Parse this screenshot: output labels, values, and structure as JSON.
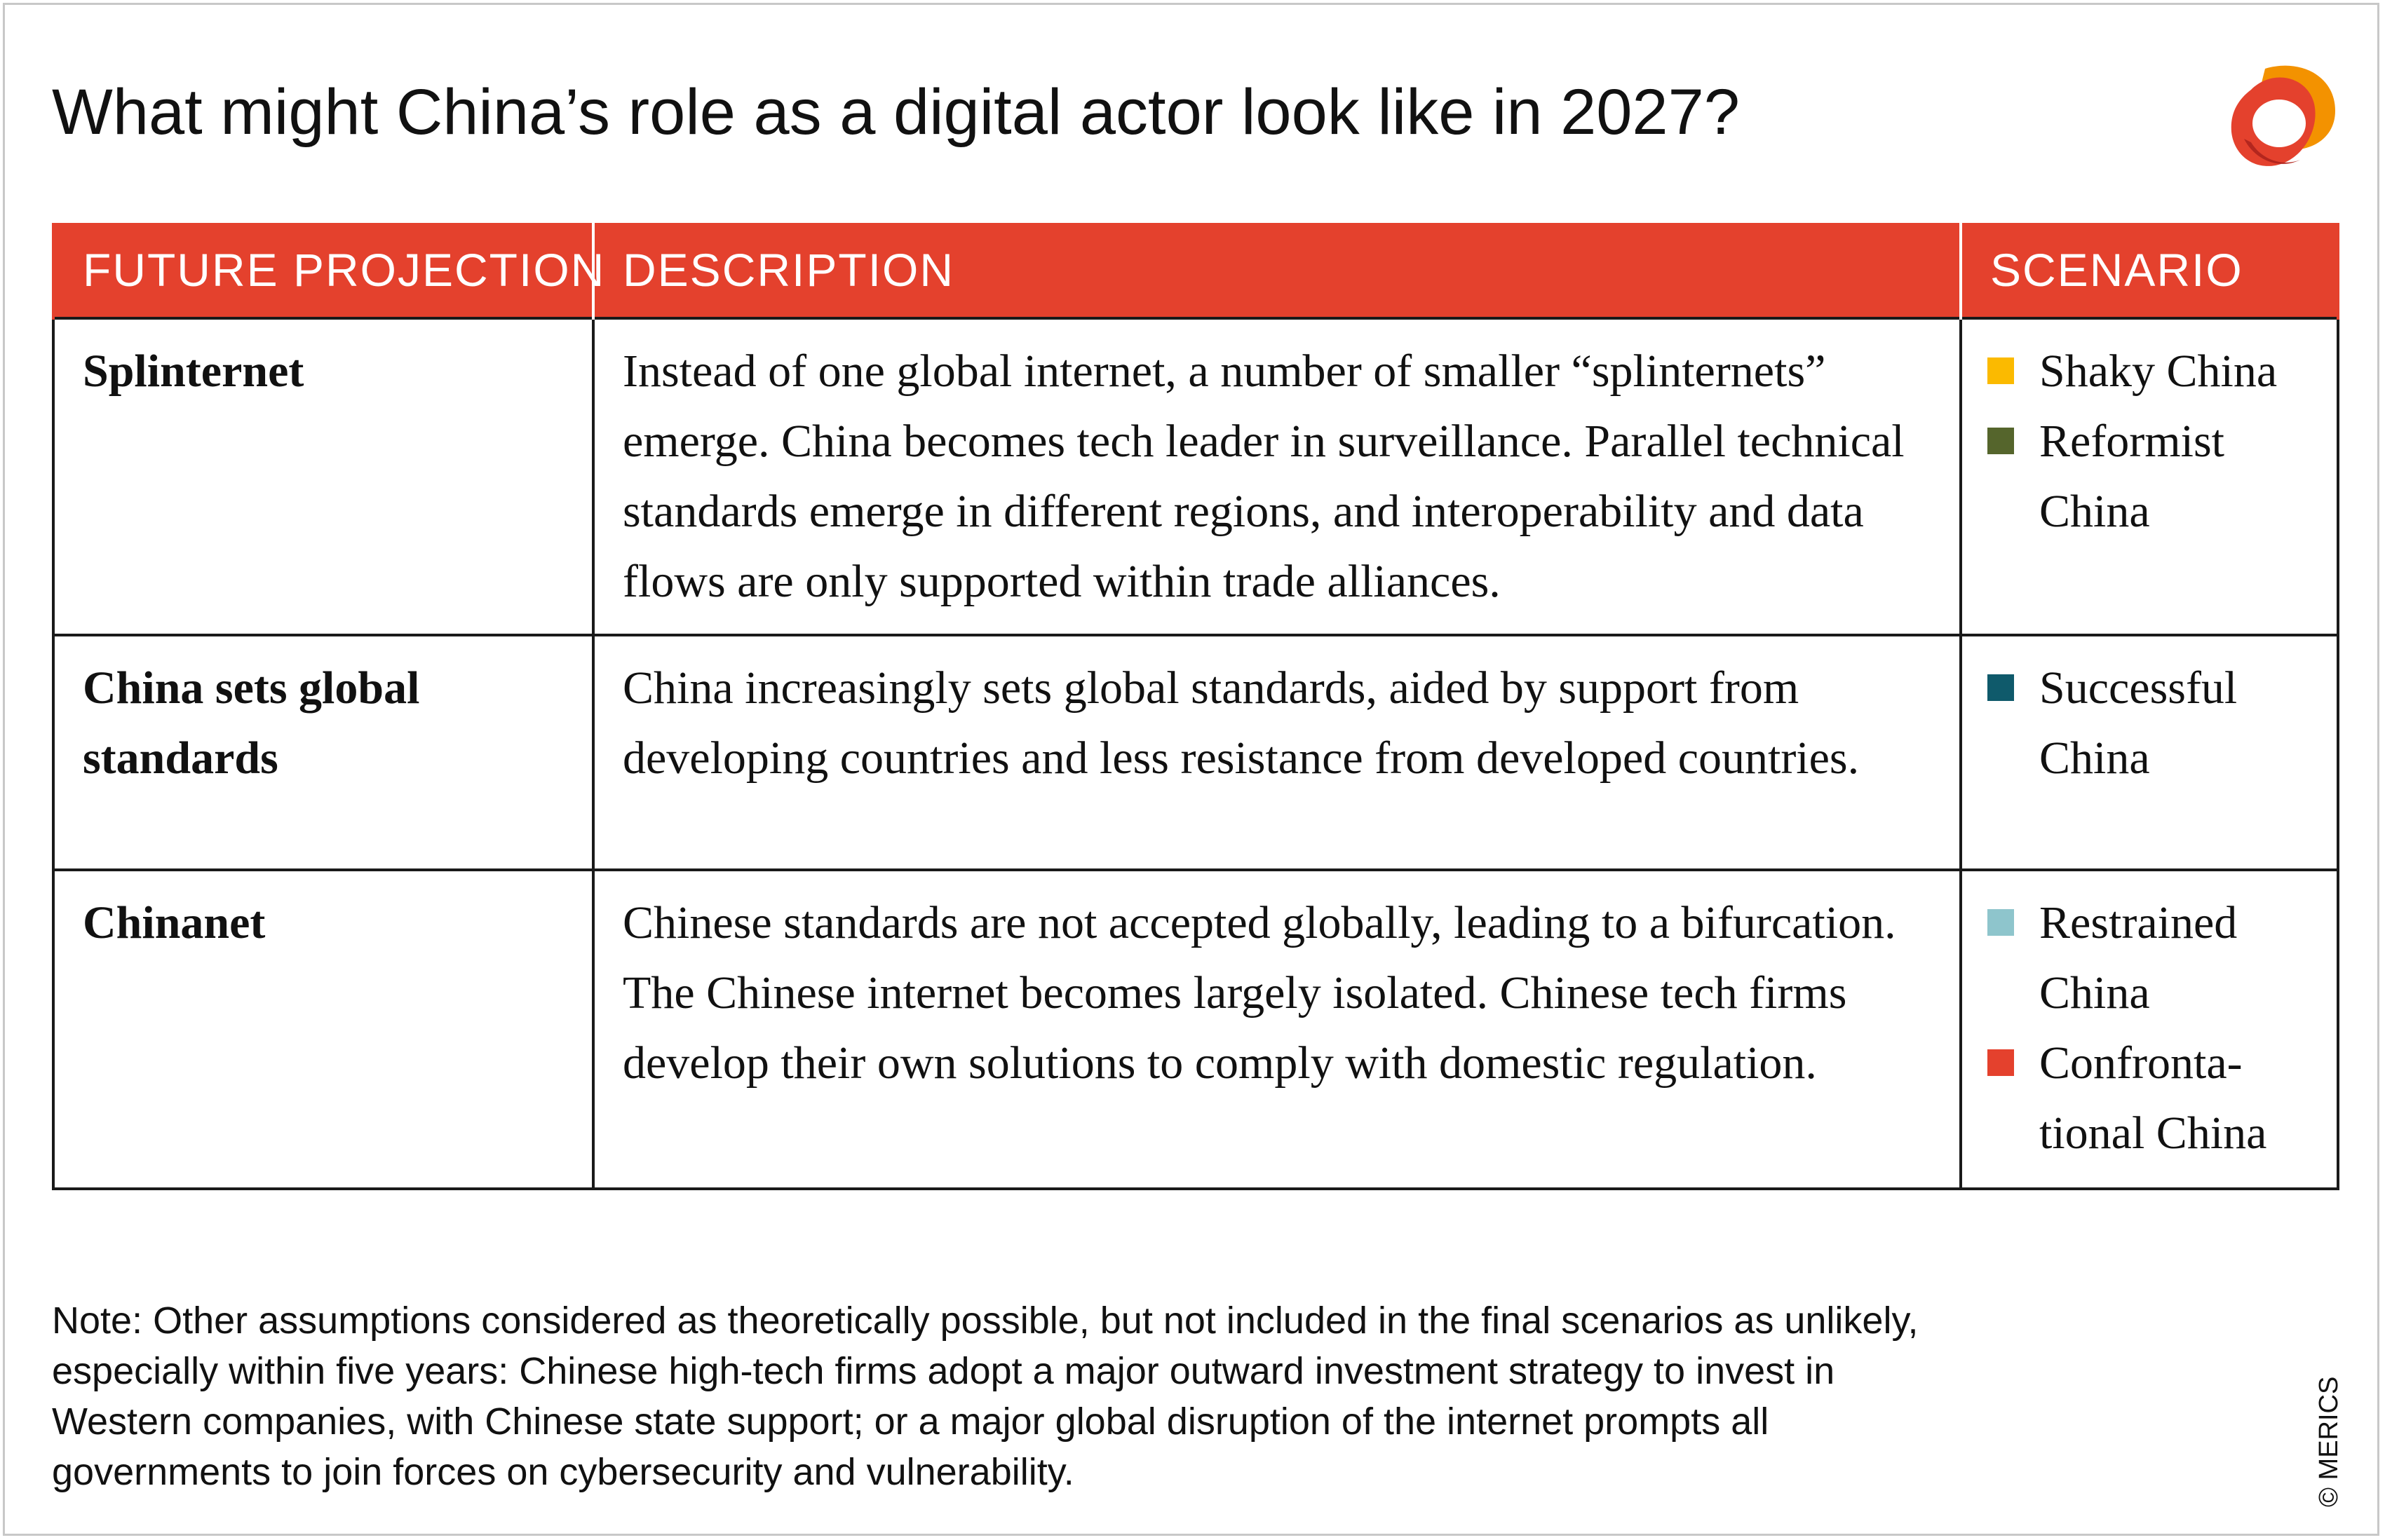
{
  "title": "What might China’s role as a digital actor look like in 2027?",
  "colors": {
    "header_bg": "#e4412d",
    "header_text": "#ffffff",
    "logo_red": "#e4412d",
    "logo_orange": "#f39200"
  },
  "logo": {
    "icon": "merics-logo-icon"
  },
  "chart_data": {
    "type": "table",
    "columns": [
      "FUTURE PROJECTION",
      "DESCRIPTION",
      "SCENARIO"
    ],
    "rows": [
      {
        "projection": "Splinternet",
        "description": "Instead of one global internet, a number of smaller “splinternets” emerge. China becomes tech leader in surveillance. Parallel technical standards emerge in different regions, and interoperability and data flows are only supported within trade alliances.",
        "scenarios": [
          {
            "label": "Shaky China",
            "color": "#fbba00"
          },
          {
            "label": "Reformist China",
            "color": "#55652c"
          }
        ]
      },
      {
        "projection": "China sets global standards",
        "description": "China increasingly sets global standards, aided by support from developing countries and less resistance from developed countries.",
        "scenarios": [
          {
            "label": "Successful China",
            "color": "#0f5a6b"
          }
        ]
      },
      {
        "projection": "Chinanet",
        "description": "Chinese standards are not accepted globally, leading to a bifurcation. The Chinese internet becomes largely isolated. Chinese tech firms develop their own solutions to comply with domestic regulation.",
        "scenarios": [
          {
            "label": "Restrained China",
            "color": "#8ec5cc"
          },
          {
            "label": "Confronta-tional China",
            "color": "#e4412d"
          }
        ]
      }
    ]
  },
  "note": "Note: Other assumptions considered as theoretically possible, but not included in the final scenarios as unlikely, especially within five years: Chinese high-tech firms adopt a major outward investment strategy to invest in Western companies, with Chinese state support; or a major global disruption of the internet prompts all governments to join forces on cybersecurity and vulnerability.",
  "credit": "© MERICS"
}
